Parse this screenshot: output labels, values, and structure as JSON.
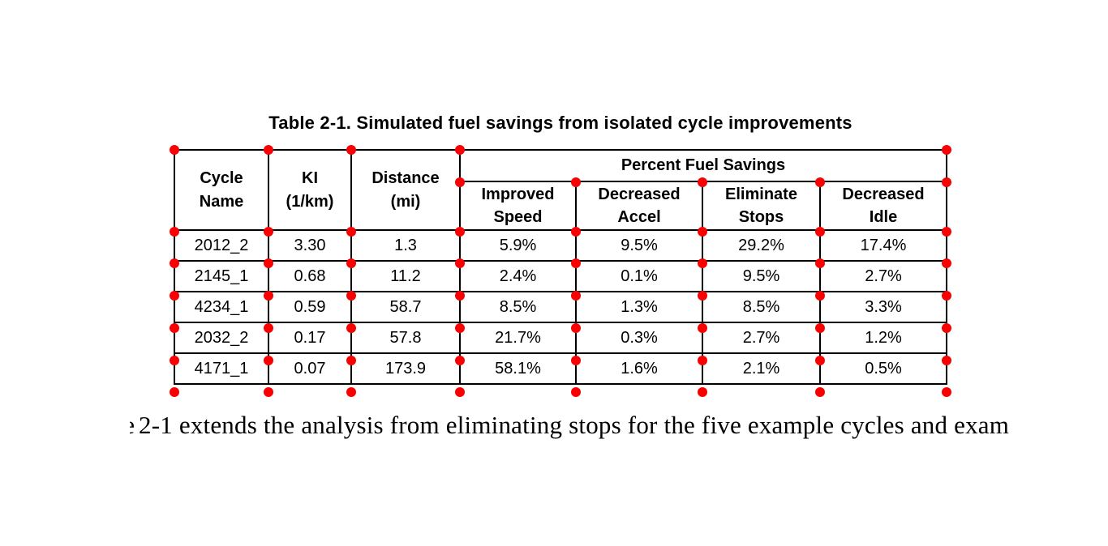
{
  "colors": {
    "background": "#ffffff",
    "text": "#000000",
    "grid_marker": "#fa0000"
  },
  "table": {
    "title": "Table 2-1. Simulated fuel savings from isolated cycle improvements",
    "columns": [
      "Cycle\nName",
      "KI\n(1/km)",
      "Distance\n(mi)"
    ],
    "span_header": "Percent Fuel Savings",
    "sub_columns": [
      "Improved\nSpeed",
      "Decreased\nAccel",
      "Eliminate\nStops",
      "Decreased\nIdle"
    ],
    "rows": [
      {
        "name": "2012_2",
        "ki": "3.30",
        "distance": "1.3",
        "improved_speed": "5.9%",
        "decreased_accel": "9.5%",
        "eliminate_stops": "29.2%",
        "decreased_idle": "17.4%"
      },
      {
        "name": "2145_1",
        "ki": "0.68",
        "distance": "11.2",
        "improved_speed": "2.4%",
        "decreased_accel": "0.1%",
        "eliminate_stops": "9.5%",
        "decreased_idle": "2.7%"
      },
      {
        "name": "4234_1",
        "ki": "0.59",
        "distance": "58.7",
        "improved_speed": "8.5%",
        "decreased_accel": "1.3%",
        "eliminate_stops": "8.5%",
        "decreased_idle": "3.3%"
      },
      {
        "name": "2032_2",
        "ki": "0.17",
        "distance": "57.8",
        "improved_speed": "21.7%",
        "decreased_accel": "0.3%",
        "eliminate_stops": "2.7%",
        "decreased_idle": "1.2%"
      },
      {
        "name": "4171_1",
        "ki": "0.07",
        "distance": "173.9",
        "improved_speed": "58.1%",
        "decreased_accel": "1.6%",
        "eliminate_stops": "2.1%",
        "decreased_idle": "0.5%"
      }
    ]
  },
  "body_text": {
    "clipped_prefix": "e",
    "text": "2-1 extends the analysis from eliminating stops for the five example cycles and exam"
  }
}
